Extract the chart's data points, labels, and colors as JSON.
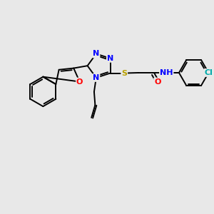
{
  "background_color": "#e8e8e8",
  "bond_color": "#000000",
  "atom_colors": {
    "N": "#0000ff",
    "O": "#ff0000",
    "S": "#b8a000",
    "Cl": "#00aaaa",
    "H": "#000000",
    "C": "#000000"
  },
  "figsize": [
    3.0,
    3.0
  ],
  "dpi": 100,
  "lw": 1.4,
  "fs": 8.5
}
